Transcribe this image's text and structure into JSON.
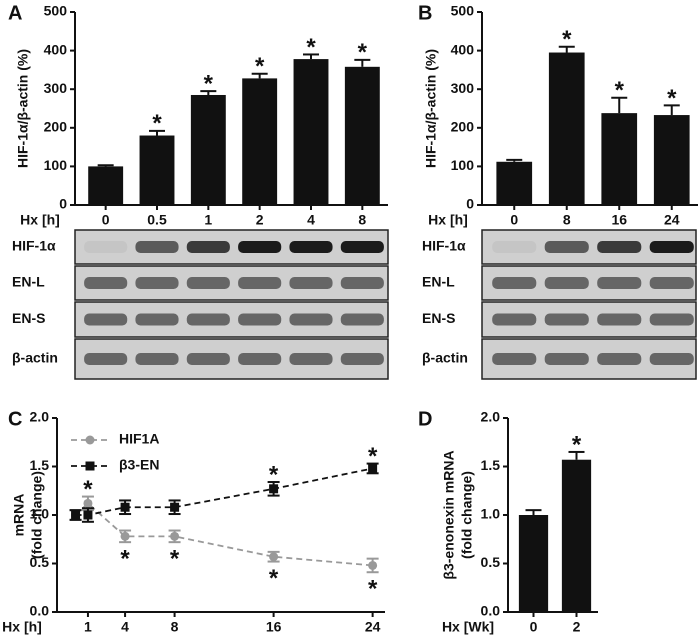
{
  "chart_data": [
    {
      "type": "bar",
      "panel": "A",
      "ylabel": [
        "HIF-1α/β-actin (%)"
      ],
      "xlabel": "Hx [h]",
      "categories": [
        "0",
        "0.5",
        "1",
        "2",
        "4",
        "8"
      ],
      "values": [
        100,
        180,
        285,
        328,
        378,
        358
      ],
      "errors": [
        3,
        12,
        10,
        12,
        12,
        18
      ],
      "color": "#111111",
      "ylim": [
        0,
        500
      ],
      "yticks": [
        0,
        100,
        200,
        300,
        400,
        500
      ],
      "annotations": [
        {
          "text": "*",
          "index": 1
        },
        {
          "text": "*",
          "index": 2
        },
        {
          "text": "*",
          "index": 3
        },
        {
          "text": "*",
          "index": 4
        },
        {
          "text": "*",
          "index": 5
        }
      ],
      "blot": [
        "HIF-1α",
        "EN-L",
        "EN-S",
        "β-actin"
      ]
    },
    {
      "type": "bar",
      "panel": "B",
      "ylabel": [
        "HIF-1α/β-actin (%)"
      ],
      "xlabel": "Hx [h]",
      "categories": [
        "0",
        "8",
        "16",
        "24"
      ],
      "values": [
        112,
        395,
        238,
        233
      ],
      "errors": [
        5,
        15,
        40,
        25
      ],
      "color": "#111111",
      "ylim": [
        0,
        500
      ],
      "yticks": [
        0,
        100,
        200,
        300,
        400,
        500
      ],
      "annotations": [
        {
          "text": "*",
          "index": 1
        },
        {
          "text": "*",
          "index": 2
        },
        {
          "text": "*",
          "index": 3
        }
      ],
      "blot": [
        "HIF-1α",
        "EN-L",
        "EN-S",
        "β-actin"
      ]
    },
    {
      "type": "line",
      "panel": "C",
      "ylabel": [
        "mRNA",
        "(fold change)"
      ],
      "xlabel": "Hx [h]",
      "x": [
        0,
        1,
        4,
        8,
        16,
        24
      ],
      "xlim": [
        -1.5,
        25
      ],
      "xticks": [
        1,
        4,
        8,
        16,
        24
      ],
      "ylim": [
        0,
        2
      ],
      "yticks": [
        {
          "value": 0,
          "label": "0.0"
        },
        0.5,
        {
          "value": 1,
          "label": "1.0"
        },
        1.5,
        {
          "value": 2,
          "label": "2.0"
        }
      ],
      "series": [
        {
          "name": "HIF1A",
          "color": "#999999",
          "marker": "circle",
          "values": [
            1.0,
            1.12,
            0.78,
            0.78,
            0.57,
            0.48
          ],
          "errors": [
            0.05,
            0.07,
            0.06,
            0.06,
            0.05,
            0.07
          ]
        },
        {
          "name": "β3-EN",
          "color": "#111111",
          "marker": "square",
          "values": [
            1.0,
            1.0,
            1.08,
            1.08,
            1.27,
            1.48
          ],
          "errors": [
            0.05,
            0.07,
            0.07,
            0.07,
            0.07,
            0.05
          ]
        }
      ],
      "annotations": [
        {
          "text": "*",
          "series": 0,
          "index": 1,
          "side": "above"
        },
        {
          "text": "*",
          "series": 0,
          "index": 2,
          "side": "below"
        },
        {
          "text": "*",
          "series": 0,
          "index": 3,
          "side": "below"
        },
        {
          "text": "*",
          "series": 0,
          "index": 4,
          "side": "below"
        },
        {
          "text": "*",
          "series": 0,
          "index": 5,
          "side": "below"
        },
        {
          "text": "*",
          "series": 1,
          "index": 4,
          "side": "above"
        },
        {
          "text": "*",
          "series": 1,
          "index": 5,
          "side": "above"
        }
      ],
      "legend": "upper left"
    },
    {
      "type": "bar",
      "panel": "D",
      "ylabel": [
        "β3-enonexin mRNA",
        "(fold change)"
      ],
      "xlabel": "Hx [Wk]",
      "categories": [
        "0",
        "2"
      ],
      "values": [
        1.0,
        1.57
      ],
      "errors": [
        0.05,
        0.08
      ],
      "color": "#111111",
      "ylim": [
        0,
        2
      ],
      "yticks": [
        {
          "value": 0,
          "label": "0.0"
        },
        0.5,
        {
          "value": 1,
          "label": "1.0"
        },
        1.5,
        {
          "value": 2,
          "label": "2.0"
        }
      ],
      "annotations": [
        {
          "text": "*",
          "index": 1
        }
      ]
    }
  ]
}
